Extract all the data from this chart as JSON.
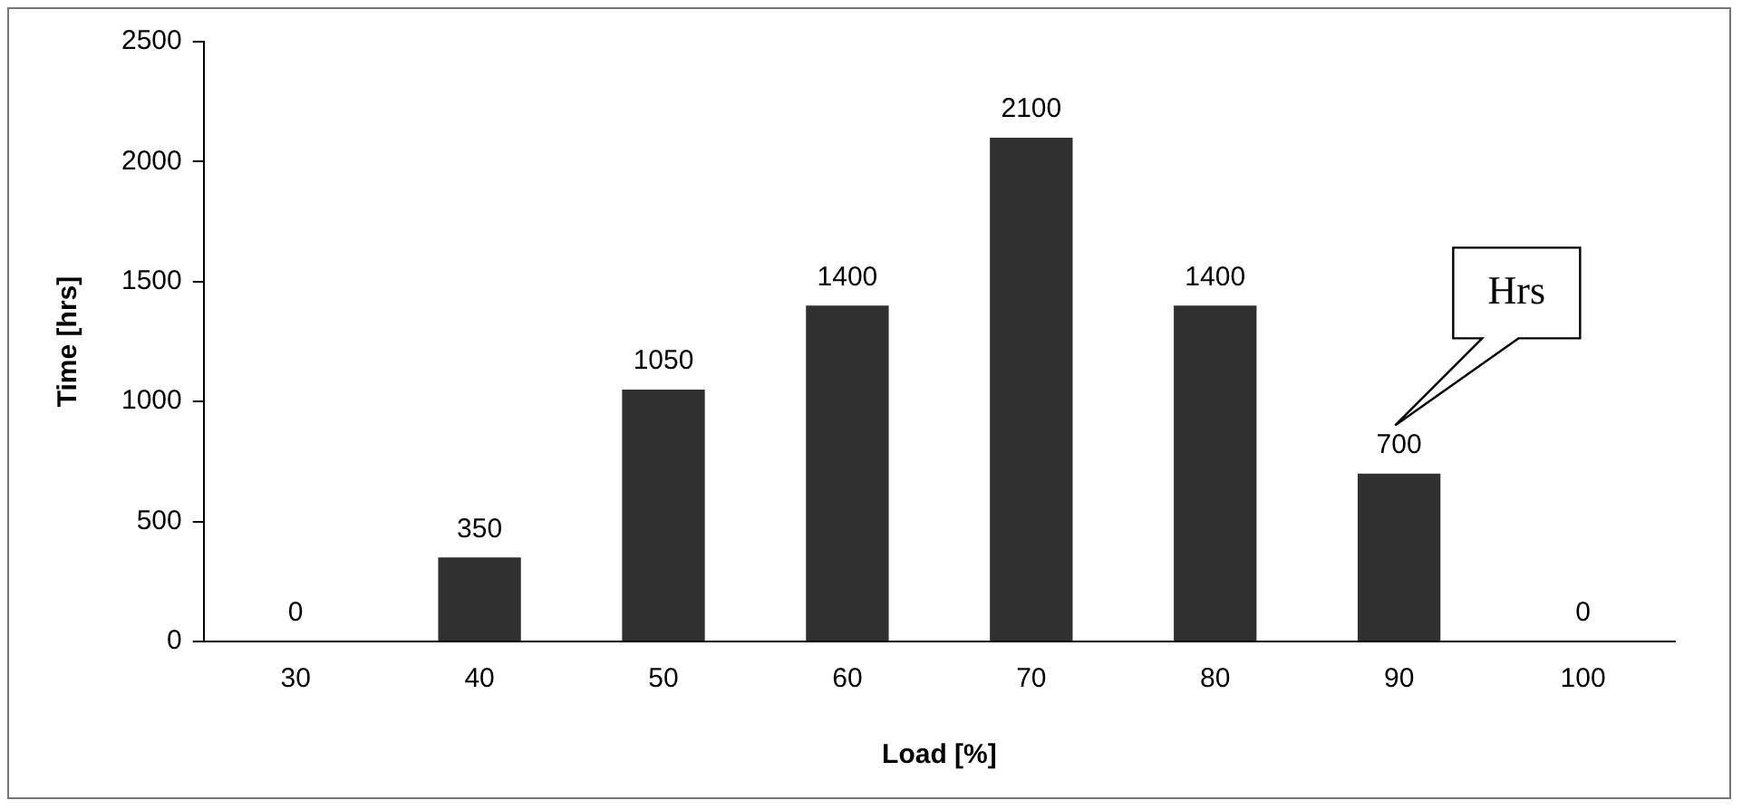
{
  "chart_data": {
    "type": "bar",
    "xlabel": "Load [%]",
    "ylabel": "Time [hrs]",
    "categories": [
      "30",
      "40",
      "50",
      "60",
      "70",
      "80",
      "90",
      "100"
    ],
    "values": [
      0,
      350,
      1050,
      1400,
      2100,
      1400,
      700,
      0
    ],
    "color": "#303030",
    "ylim": [
      0,
      2500
    ],
    "yticks": [
      0,
      500,
      1000,
      1500,
      2000,
      2500
    ],
    "data_labels": true,
    "grid": false,
    "legend": false,
    "annotations": [
      "Hrs"
    ]
  }
}
